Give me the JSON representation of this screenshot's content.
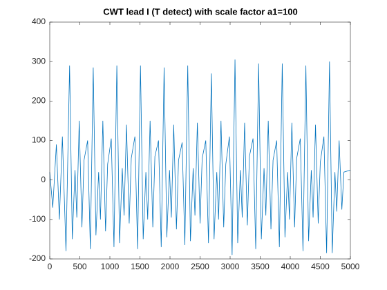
{
  "chart_data": {
    "type": "line",
    "title": "CWT lead I (T detect) with scale factor a1=100",
    "x": [
      0,
      50,
      110,
      160,
      210,
      270,
      330,
      375,
      420,
      450,
      490,
      535,
      570,
      630,
      675,
      723,
      768,
      813,
      843,
      883,
      928,
      963,
      1023,
      1068,
      1116,
      1161,
      1206,
      1236,
      1276,
      1321,
      1356,
      1416,
      1461,
      1509,
      1554,
      1599,
      1629,
      1669,
      1714,
      1749,
      1809,
      1854,
      1902,
      1947,
      1992,
      2022,
      2062,
      2107,
      2142,
      2202,
      2247,
      2295,
      2340,
      2385,
      2415,
      2455,
      2500,
      2535,
      2595,
      2640,
      2688,
      2733,
      2778,
      2808,
      2848,
      2893,
      2928,
      2988,
      3033,
      3081,
      3126,
      3171,
      3201,
      3241,
      3286,
      3321,
      3381,
      3426,
      3474,
      3519,
      3564,
      3594,
      3634,
      3679,
      3714,
      3774,
      3819,
      3867,
      3912,
      3957,
      3987,
      4027,
      4072,
      4107,
      4167,
      4212,
      4260,
      4305,
      4350,
      4380,
      4420,
      4465,
      4500,
      4560,
      4605,
      4653,
      4698,
      4743,
      4773,
      4813,
      4858,
      4893,
      5000
    ],
    "values": [
      20,
      -70,
      90,
      -100,
      110,
      -180,
      290,
      -150,
      25,
      -95,
      150,
      -120,
      50,
      100,
      -175,
      285,
      -140,
      20,
      -100,
      150,
      -130,
      40,
      105,
      -170,
      290,
      -160,
      30,
      -90,
      140,
      -110,
      55,
      110,
      -175,
      290,
      -150,
      20,
      -100,
      150,
      -120,
      60,
      100,
      -170,
      285,
      -145,
      25,
      -95,
      140,
      -125,
      50,
      95,
      -165,
      290,
      -155,
      30,
      -90,
      145,
      -110,
      55,
      100,
      -160,
      270,
      -150,
      20,
      -100,
      150,
      -120,
      40,
      110,
      -190,
      305,
      -160,
      25,
      -95,
      145,
      -115,
      60,
      105,
      -175,
      295,
      -150,
      30,
      -90,
      150,
      -125,
      50,
      100,
      -170,
      295,
      -145,
      20,
      -100,
      145,
      -120,
      55,
      105,
      -180,
      290,
      -155,
      25,
      -95,
      140,
      -110,
      45,
      110,
      -185,
      300,
      -185,
      20,
      -80,
      100,
      -75,
      20,
      25
    ],
    "color": "#0072bd",
    "xlim": [
      0,
      5000
    ],
    "xticks": [
      0,
      500,
      1000,
      1500,
      2000,
      2500,
      3000,
      3500,
      4000,
      4500,
      5000
    ],
    "ylim": [
      -200,
      400
    ],
    "yticks": [
      -200,
      -100,
      0,
      100,
      200,
      300,
      400
    ]
  }
}
